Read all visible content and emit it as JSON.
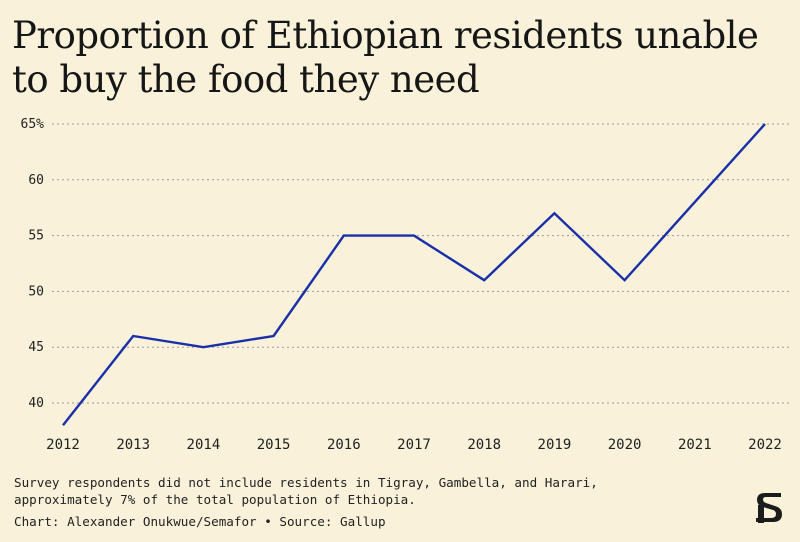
{
  "title": "Proportion of Ethiopian residents unable to buy the food they need",
  "note": "Survey respondents did not include residents in Tigray, Gambella, and Harari, approximately 7% of the total population of Ethiopia.",
  "note_line1": "Survey respondents did not include residents in Tigray, Gambella, and Harari,",
  "note_line2": "approximately 7% of the total population of Ethiopia.",
  "credit": "Chart: Alexander Onukwue/Semafor • Source: Gallup",
  "colors": {
    "background": "#f9f1d9",
    "line": "#1a2fa8",
    "grid": "#9b9b9b",
    "logo": "#1c1c1c"
  },
  "logo_icon": "semafor-s-logo-icon",
  "chart_data": {
    "type": "line",
    "title": "Proportion of Ethiopian residents unable to buy the food they need",
    "xlabel": "",
    "ylabel": "",
    "x": [
      "2012",
      "2013",
      "2014",
      "2015",
      "2016",
      "2017",
      "2018",
      "2019",
      "2020",
      "2021",
      "2022"
    ],
    "series": [
      {
        "values": [
          38,
          46,
          45,
          46,
          55,
          55,
          51,
          57,
          51,
          58,
          65
        ]
      }
    ],
    "ylim": [
      38,
      65
    ],
    "yticks": [
      40,
      45,
      50,
      55,
      60,
      65
    ],
    "ytick_labels": [
      "40",
      "45",
      "50",
      "55",
      "60",
      "65%"
    ],
    "grid": "horizontal dotted",
    "legend": "none"
  }
}
